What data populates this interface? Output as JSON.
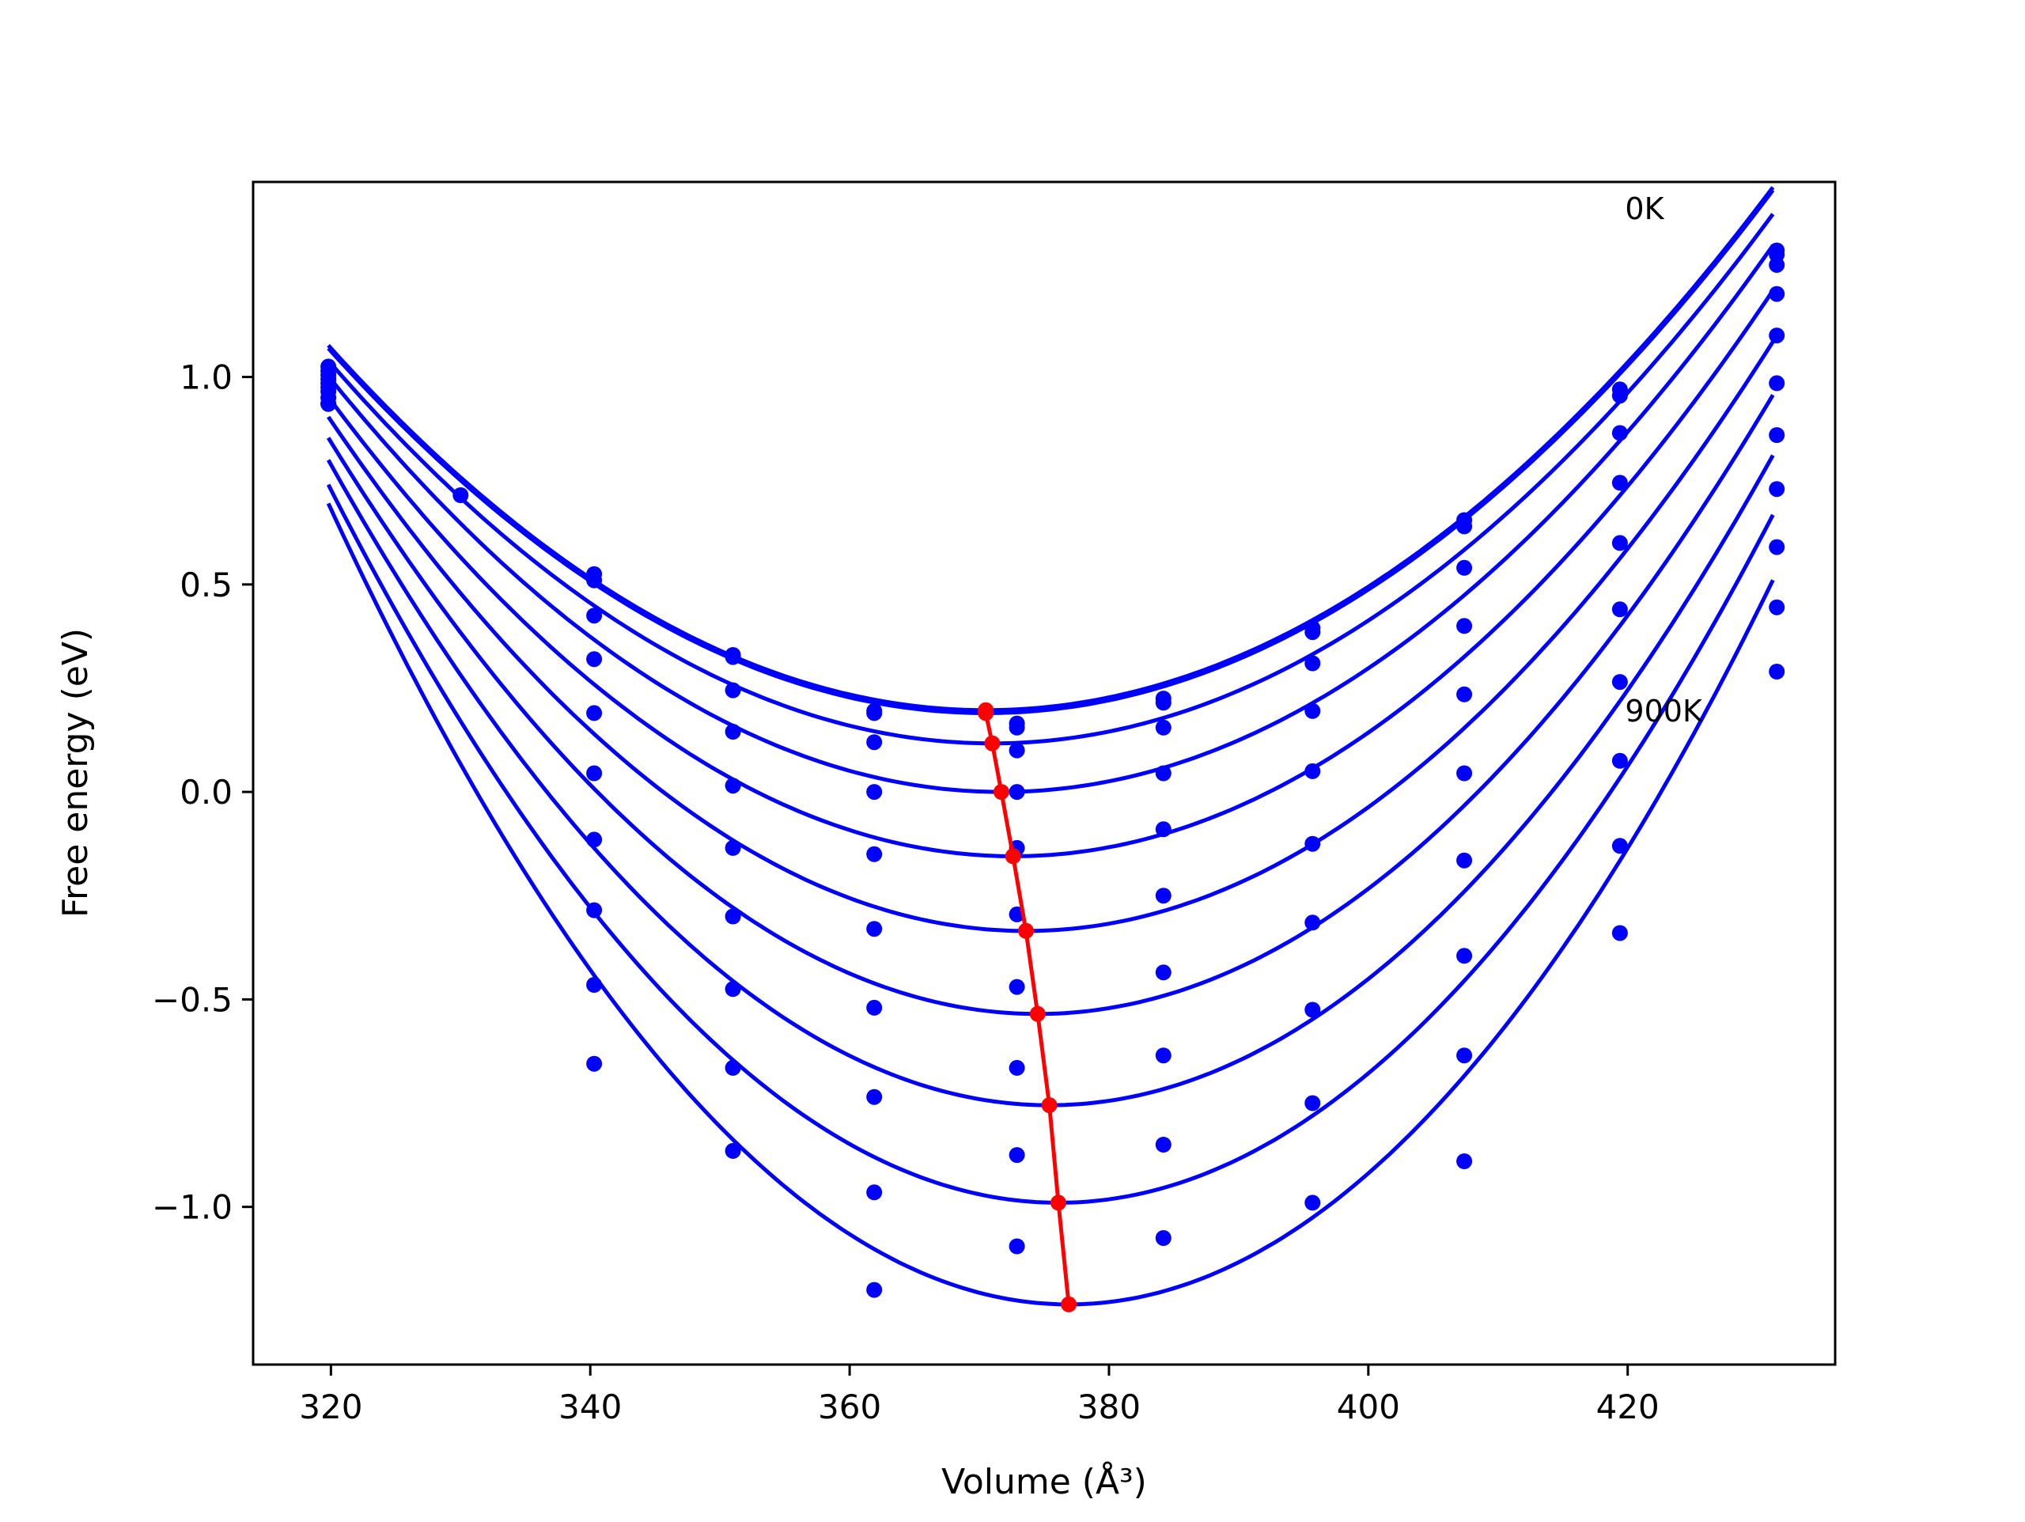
{
  "chart_data": {
    "type": "scatter",
    "title": "",
    "xlabel": "Volume (Å³)",
    "ylabel": "Free energy (eV)",
    "xlim": [
      314,
      436
    ],
    "ylim": [
      -1.38,
      1.47
    ],
    "xticks": [
      320,
      340,
      360,
      380,
      400,
      420
    ],
    "yticks": [
      -1.0,
      -0.5,
      0.0,
      0.5,
      1.0
    ],
    "xtick_labels": [
      "320",
      "340",
      "360",
      "380",
      "400",
      "420"
    ],
    "ytick_labels": [
      "−1.0",
      "−0.5",
      "0.0",
      "0.5",
      "1.0"
    ],
    "grid": false,
    "legend": "none",
    "annotations": [
      {
        "text": "0K",
        "x": 419.8,
        "y": 1.38
      },
      {
        "text": "900K",
        "x": 419.8,
        "y": 0.17
      }
    ],
    "colors": {
      "series": "#0000ff",
      "minimum_line": "#ff0000"
    },
    "series": [
      {
        "x": [
          319.8,
          330.0,
          340.3,
          351.0,
          361.9,
          372.9,
          384.2,
          395.7,
          407.4,
          419.4,
          431.5
        ],
        "y": [
          0.935,
          0.715,
          0.525,
          0.33,
          0.195,
          0.165,
          0.225,
          0.395,
          0.655,
          0.97,
          1.305
        ],
        "fit": {
          "v0": 370.5,
          "e0": 0.197,
          "k": 0.000342,
          "v_end": 431.2
        }
      },
      {
        "x": [
          319.8,
          340.3,
          351.0,
          361.9,
          372.9,
          384.2,
          395.7,
          407.4,
          419.4,
          431.5
        ],
        "y": [
          0.935,
          0.51,
          0.325,
          0.19,
          0.155,
          0.215,
          0.385,
          0.64,
          0.955,
          1.295
        ],
        "fit": {
          "v0": 370.5,
          "e0": 0.19,
          "k": 0.000342,
          "v_end": 431.2
        }
      },
      {
        "x": [
          319.8,
          340.3,
          351.0,
          361.9,
          372.9,
          384.2,
          395.7,
          407.4,
          419.4,
          431.5
        ],
        "y": [
          0.95,
          0.425,
          0.245,
          0.12,
          0.1,
          0.155,
          0.31,
          0.54,
          0.865,
          1.27
        ],
        "fit": {
          "v0": 371.0,
          "e0": 0.117,
          "k": 0.000352,
          "v_end": 431.2
        }
      },
      {
        "x": [
          319.8,
          340.3,
          351.0,
          361.9,
          372.9,
          384.2,
          395.7,
          407.4,
          419.4,
          431.5
        ],
        "y": [
          0.965,
          0.32,
          0.145,
          0.0,
          0.0,
          0.045,
          0.195,
          0.4,
          0.745,
          1.2
        ],
        "fit": {
          "v0": 371.7,
          "e0": 0.0,
          "k": 0.000372,
          "v_end": 431.2
        }
      },
      {
        "x": [
          319.8,
          340.3,
          351.0,
          361.9,
          372.9,
          384.2,
          395.7,
          407.4,
          419.4,
          431.5
        ],
        "y": [
          0.975,
          0.19,
          0.015,
          -0.15,
          -0.135,
          -0.09,
          0.05,
          0.235,
          0.6,
          1.1
        ],
        "fit": {
          "v0": 372.6,
          "e0": -0.155,
          "k": 0.000397,
          "v_end": 431.2
        }
      },
      {
        "x": [
          319.8,
          340.3,
          351.0,
          361.9,
          372.9,
          384.2,
          395.7,
          407.4,
          419.4,
          431.5
        ],
        "y": [
          0.985,
          0.045,
          -0.135,
          -0.33,
          -0.295,
          -0.25,
          -0.125,
          0.045,
          0.44,
          0.985
        ],
        "fit": {
          "v0": 373.6,
          "e0": -0.335,
          "k": 0.000428,
          "v_end": 431.2
        }
      },
      {
        "x": [
          319.8,
          340.3,
          351.0,
          361.9,
          372.9,
          384.2,
          395.7,
          407.4,
          419.4,
          431.5
        ],
        "y": [
          0.995,
          -0.115,
          -0.3,
          -0.52,
          -0.47,
          -0.435,
          -0.315,
          -0.165,
          0.265,
          0.86
        ],
        "fit": {
          "v0": 374.5,
          "e0": -0.535,
          "k": 0.000464,
          "v_end": 431.2
        }
      },
      {
        "x": [
          319.8,
          340.3,
          351.0,
          361.9,
          372.9,
          384.2,
          395.7,
          407.4,
          419.4,
          431.5
        ],
        "y": [
          1.005,
          -0.285,
          -0.475,
          -0.735,
          -0.665,
          -0.635,
          -0.525,
          -0.395,
          0.075,
          0.73
        ],
        "fit": {
          "v0": 375.4,
          "e0": -0.755,
          "k": 0.000503,
          "v_end": 431.2
        }
      },
      {
        "x": [
          319.8,
          340.3,
          351.0,
          361.9,
          372.9,
          384.2,
          395.7,
          407.4,
          419.4,
          431.5
        ],
        "y": [
          1.015,
          -0.465,
          -0.665,
          -0.965,
          -0.875,
          -0.85,
          -0.75,
          -0.635,
          -0.13,
          0.59
        ],
        "fit": {
          "v0": 376.1,
          "e0": -0.99,
          "k": 0.000546,
          "v_end": 431.2
        }
      },
      {
        "x": [
          319.8,
          340.3,
          351.0,
          361.9,
          372.9,
          384.2,
          395.7,
          407.4,
          419.4,
          431.5
        ],
        "y": [
          1.025,
          -0.655,
          -0.865,
          -1.2,
          -1.095,
          -1.075,
          -0.99,
          -0.89,
          -0.34,
          0.445
        ],
        "fit": {
          "v0": 376.9,
          "e0": -1.235,
          "k": 0.000592,
          "v_end": 431.2
        }
      },
      {
        "x": [
          431.5
        ],
        "y": [
          0.29
        ],
        "fit": null
      }
    ],
    "minimum_line": {
      "x": [
        370.5,
        370.5,
        371.0,
        371.7,
        372.6,
        373.6,
        374.5,
        375.4,
        376.1,
        376.9
      ],
      "y": [
        0.197,
        0.19,
        0.117,
        0.0,
        -0.155,
        -0.335,
        -0.535,
        -0.755,
        -0.99,
        -1.235
      ]
    }
  }
}
